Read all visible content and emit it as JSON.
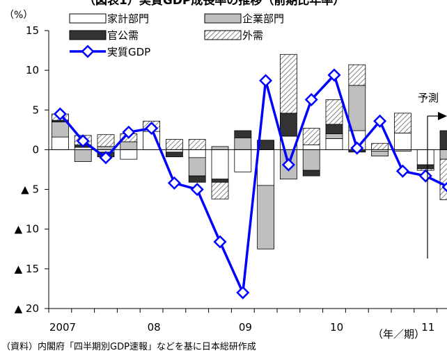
{
  "title": "（図表1）実質GDP成長率の推移（前期比年率）",
  "source_note": "（資料）内閣府「四半期別GDP速報」などを基に日本総研作成",
  "forecast_label": "予測",
  "colors": {
    "household": "#ffffff",
    "corporate": "#bfbfbf",
    "government": "#333333",
    "external": "hatched",
    "gdp_line": "#0000ff",
    "gdp_marker_fill": "#ffffff"
  },
  "chart_data": {
    "type": "bar",
    "stacked": true,
    "y_unit": "（%）",
    "xlabel": "（年／期）",
    "ylim": [
      -20,
      15
    ],
    "y_ticks": [
      15,
      10,
      5,
      0,
      -5,
      -10,
      -15,
      -20
    ],
    "y_tick_labels": [
      "15",
      "10",
      "5",
      "0",
      "▲ 5",
      "▲ 10",
      "▲ 15",
      "▲ 20"
    ],
    "x_year_labels": [
      {
        "label": "2007",
        "at_index": 0
      },
      {
        "label": "08",
        "at_index": 4
      },
      {
        "label": "09",
        "at_index": 8
      },
      {
        "label": "10",
        "at_index": 12
      },
      {
        "label": "11",
        "at_index": 16
      }
    ],
    "n_periods": 18,
    "forecast_starts_at_index": 17,
    "legend_placement": "top-left",
    "series": [
      {
        "name": "家計部門",
        "key": "household",
        "values": [
          1.6,
          0.3,
          -0.3,
          -1.2,
          2.3,
          -0.3,
          -1.0,
          -3.7,
          -2.8,
          -4.5,
          1.7,
          0.6,
          1.4,
          2.4,
          -0.2,
          2.1,
          -1.9,
          0.0
        ]
      },
      {
        "name": "企業部門",
        "key": "corporate",
        "values": [
          1.9,
          -1.5,
          0.4,
          1.0,
          0.0,
          0.0,
          -2.3,
          0.4,
          1.5,
          -8.0,
          -3.7,
          -2.6,
          0.6,
          5.7,
          -0.6,
          -0.2,
          0.0,
          -1.2
        ]
      },
      {
        "name": "官公需",
        "key": "government",
        "values": [
          0.2,
          0.3,
          -0.6,
          0.0,
          0.0,
          -0.6,
          -0.8,
          -0.4,
          0.9,
          1.2,
          2.9,
          -0.7,
          1.2,
          -0.3,
          0.0,
          0.0,
          -0.5,
          2.4
        ]
      },
      {
        "name": "外需",
        "key": "external",
        "values": [
          0.8,
          1.2,
          1.5,
          1.0,
          1.3,
          1.3,
          1.3,
          -2.1,
          0.0,
          0.0,
          7.4,
          2.1,
          3.1,
          2.6,
          0.8,
          2.5,
          -0.2,
          -5.1
        ]
      }
    ],
    "line": {
      "name": "実質GDP",
      "values": [
        4.5,
        1.1,
        -1.0,
        2.2,
        2.7,
        -4.2,
        -5.0,
        -11.6,
        -18.0,
        8.7,
        -1.9,
        6.3,
        9.4,
        0.2,
        3.6,
        -2.7,
        -3.3,
        -4.7
      ]
    }
  }
}
